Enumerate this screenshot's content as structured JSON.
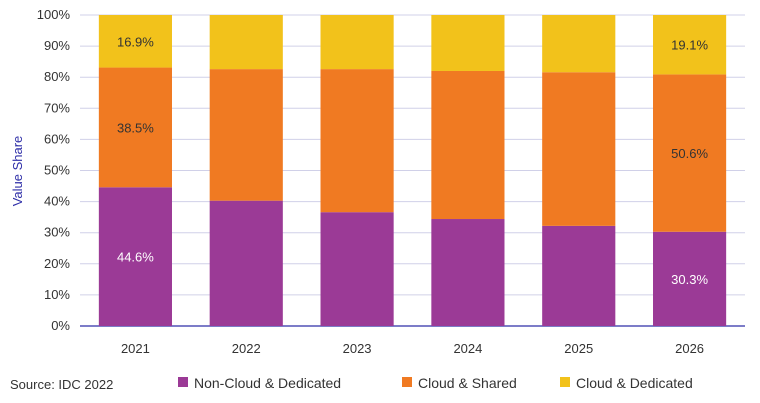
{
  "chart_data": {
    "type": "bar",
    "stacked": true,
    "categories": [
      "2021",
      "2022",
      "2023",
      "2024",
      "2025",
      "2026"
    ],
    "series": [
      {
        "name": "Non-Cloud & Dedicated",
        "color": "#9b3a96",
        "values": [
          44.6,
          40.3,
          36.6,
          34.4,
          32.2,
          30.3
        ]
      },
      {
        "name": "Cloud & Shared",
        "color": "#f07a22",
        "values": [
          38.5,
          42.3,
          46.0,
          47.6,
          49.4,
          50.6
        ]
      },
      {
        "name": "Cloud & Dedicated",
        "color": "#f2c21b",
        "values": [
          16.9,
          17.4,
          17.4,
          18.0,
          18.4,
          19.1
        ]
      }
    ],
    "data_labels": [
      {
        "series": 0,
        "category": 0,
        "text": "44.6%",
        "color": "#ffffff"
      },
      {
        "series": 1,
        "category": 0,
        "text": "38.5%",
        "color": "#333333"
      },
      {
        "series": 2,
        "category": 0,
        "text": "16.9%",
        "color": "#333333"
      },
      {
        "series": 0,
        "category": 5,
        "text": "30.3%",
        "color": "#ffffff"
      },
      {
        "series": 1,
        "category": 5,
        "text": "50.6%",
        "color": "#333333"
      },
      {
        "series": 2,
        "category": 5,
        "text": "19.1%",
        "color": "#333333"
      }
    ],
    "ylabel": "Value  Share",
    "ylim": [
      0,
      100
    ],
    "yticks": [
      "0%",
      "10%",
      "20%",
      "30%",
      "40%",
      "50%",
      "60%",
      "70%",
      "80%",
      "90%",
      "100%"
    ],
    "grid": true,
    "legend_position": "bottom",
    "axis_color": "#2f2fa8",
    "grid_color": "#d0d0e8"
  },
  "source": "Source: IDC 2022"
}
